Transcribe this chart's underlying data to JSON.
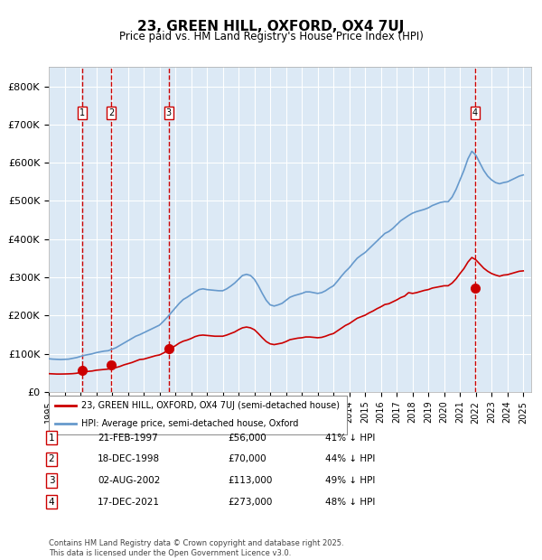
{
  "title": "23, GREEN HILL, OXFORD, OX4 7UJ",
  "subtitle": "Price paid vs. HM Land Registry's House Price Index (HPI)",
  "ylabel_ticks": [
    "£0",
    "£100K",
    "£200K",
    "£300K",
    "£400K",
    "£500K",
    "£600K",
    "£700K",
    "£800K"
  ],
  "ytick_values": [
    0,
    100000,
    200000,
    300000,
    400000,
    500000,
    600000,
    700000,
    800000
  ],
  "ylim": [
    0,
    850000
  ],
  "xlim_start": 1995.0,
  "xlim_end": 2025.5,
  "background_color": "#dce9f5",
  "plot_bg_color": "#dce9f5",
  "grid_color": "#ffffff",
  "sale_dates_decimal": [
    1997.13,
    1998.96,
    2002.58,
    2021.96
  ],
  "sale_prices": [
    56000,
    70000,
    113000,
    273000
  ],
  "sale_labels": [
    "1",
    "2",
    "3",
    "4"
  ],
  "sale_date_strings": [
    "21-FEB-1997",
    "18-DEC-1998",
    "02-AUG-2002",
    "17-DEC-2021"
  ],
  "sale_price_strings": [
    "£56,000",
    "£70,000",
    "£113,000",
    "£273,000"
  ],
  "sale_hpi_strings": [
    "41% ↓ HPI",
    "44% ↓ HPI",
    "49% ↓ HPI",
    "48% ↓ HPI"
  ],
  "red_line_color": "#cc0000",
  "blue_line_color": "#6699cc",
  "marker_color": "#cc0000",
  "vline_color": "#cc0000",
  "legend1_label": "23, GREEN HILL, OXFORD, OX4 7UJ (semi-detached house)",
  "legend2_label": "HPI: Average price, semi-detached house, Oxford",
  "footer_text": "Contains HM Land Registry data © Crown copyright and database right 2025.\nThis data is licensed under the Open Government Licence v3.0.",
  "hpi_years": [
    1995.0,
    1995.25,
    1995.5,
    1995.75,
    1996.0,
    1996.25,
    1996.5,
    1996.75,
    1997.0,
    1997.25,
    1997.5,
    1997.75,
    1998.0,
    1998.25,
    1998.5,
    1998.75,
    1999.0,
    1999.25,
    1999.5,
    1999.75,
    2000.0,
    2000.25,
    2000.5,
    2000.75,
    2001.0,
    2001.25,
    2001.5,
    2001.75,
    2002.0,
    2002.25,
    2002.5,
    2002.75,
    2003.0,
    2003.25,
    2003.5,
    2003.75,
    2004.0,
    2004.25,
    2004.5,
    2004.75,
    2005.0,
    2005.25,
    2005.5,
    2005.75,
    2006.0,
    2006.25,
    2006.5,
    2006.75,
    2007.0,
    2007.25,
    2007.5,
    2007.75,
    2008.0,
    2008.25,
    2008.5,
    2008.75,
    2009.0,
    2009.25,
    2009.5,
    2009.75,
    2010.0,
    2010.25,
    2010.5,
    2010.75,
    2011.0,
    2011.25,
    2011.5,
    2011.75,
    2012.0,
    2012.25,
    2012.5,
    2012.75,
    2013.0,
    2013.25,
    2013.5,
    2013.75,
    2014.0,
    2014.25,
    2014.5,
    2014.75,
    2015.0,
    2015.25,
    2015.5,
    2015.75,
    2016.0,
    2016.25,
    2016.5,
    2016.75,
    2017.0,
    2017.25,
    2017.5,
    2017.75,
    2018.0,
    2018.25,
    2018.5,
    2018.75,
    2019.0,
    2019.25,
    2019.5,
    2019.75,
    2020.0,
    2020.25,
    2020.5,
    2020.75,
    2021.0,
    2021.25,
    2021.5,
    2021.75,
    2022.0,
    2022.25,
    2022.5,
    2022.75,
    2023.0,
    2023.25,
    2023.5,
    2023.75,
    2024.0,
    2024.25,
    2024.5,
    2024.75,
    2025.0
  ],
  "hpi_values": [
    87000,
    86000,
    85500,
    85000,
    85500,
    86000,
    88000,
    90000,
    93000,
    96000,
    98000,
    100000,
    103000,
    105000,
    107000,
    108000,
    112000,
    116000,
    122000,
    128000,
    134000,
    140000,
    146000,
    150000,
    155000,
    160000,
    165000,
    170000,
    175000,
    185000,
    196000,
    208000,
    220000,
    232000,
    242000,
    248000,
    255000,
    262000,
    268000,
    270000,
    268000,
    267000,
    266000,
    265000,
    265000,
    270000,
    277000,
    285000,
    295000,
    305000,
    308000,
    305000,
    295000,
    278000,
    258000,
    240000,
    228000,
    225000,
    228000,
    232000,
    240000,
    248000,
    252000,
    255000,
    258000,
    262000,
    262000,
    260000,
    258000,
    260000,
    265000,
    272000,
    278000,
    290000,
    303000,
    315000,
    325000,
    338000,
    350000,
    358000,
    365000,
    375000,
    385000,
    395000,
    405000,
    415000,
    420000,
    428000,
    438000,
    448000,
    455000,
    462000,
    468000,
    472000,
    475000,
    478000,
    482000,
    488000,
    492000,
    496000,
    498000,
    498000,
    510000,
    530000,
    555000,
    580000,
    610000,
    630000,
    620000,
    600000,
    580000,
    565000,
    555000,
    548000,
    545000,
    548000,
    550000,
    555000,
    560000,
    565000,
    568000
  ],
  "property_hpi_years": [
    1995.0,
    1995.25,
    1995.5,
    1995.75,
    1996.0,
    1996.25,
    1996.5,
    1996.75,
    1997.0,
    1997.25,
    1997.5,
    1997.75,
    1998.0,
    1998.25,
    1998.5,
    1998.75,
    1999.0,
    1999.25,
    1999.5,
    1999.75,
    2000.0,
    2000.25,
    2000.5,
    2000.75,
    2001.0,
    2001.25,
    2001.5,
    2001.75,
    2002.0,
    2002.25,
    2002.5,
    2002.75,
    2003.0,
    2003.25,
    2003.5,
    2003.75,
    2004.0,
    2004.25,
    2004.5,
    2004.75,
    2005.0,
    2005.25,
    2005.5,
    2005.75,
    2006.0,
    2006.25,
    2006.5,
    2006.75,
    2007.0,
    2007.25,
    2007.5,
    2007.75,
    2008.0,
    2008.25,
    2008.5,
    2008.75,
    2009.0,
    2009.25,
    2009.5,
    2009.75,
    2010.0,
    2010.25,
    2010.5,
    2010.75,
    2011.0,
    2011.25,
    2011.5,
    2011.75,
    2012.0,
    2012.25,
    2012.5,
    2012.75,
    2013.0,
    2013.25,
    2013.5,
    2013.75,
    2014.0,
    2014.25,
    2014.5,
    2014.75,
    2015.0,
    2015.25,
    2015.5,
    2015.75,
    2016.0,
    2016.25,
    2016.5,
    2016.75,
    2017.0,
    2017.25,
    2017.5,
    2017.75,
    2018.0,
    2018.25,
    2018.5,
    2018.75,
    2019.0,
    2019.25,
    2019.5,
    2019.75,
    2020.0,
    2020.25,
    2020.5,
    2020.75,
    2021.0,
    2021.25,
    2021.5,
    2021.75,
    2022.0,
    2022.25,
    2022.5,
    2022.75,
    2023.0,
    2023.25,
    2023.5,
    2023.75,
    2024.0,
    2024.25,
    2024.5,
    2024.75,
    2025.0
  ],
  "property_values": [
    48000,
    47500,
    47000,
    47000,
    47200,
    47500,
    48000,
    49000,
    51000,
    53000,
    54000,
    55000,
    57000,
    58000,
    59000,
    60000,
    62000,
    64000,
    67000,
    71000,
    74000,
    77000,
    81000,
    85000,
    86000,
    89000,
    92000,
    95000,
    97000,
    102000,
    108000,
    115000,
    121000,
    128000,
    133000,
    136000,
    140000,
    145000,
    148000,
    149000,
    148000,
    147000,
    146000,
    146000,
    146000,
    149000,
    153000,
    157000,
    163000,
    168000,
    170000,
    168000,
    163000,
    153000,
    142000,
    132000,
    126000,
    124000,
    126000,
    128000,
    132000,
    137000,
    139000,
    141000,
    142000,
    144000,
    144000,
    143000,
    142000,
    143000,
    146000,
    150000,
    153000,
    160000,
    167000,
    174000,
    179000,
    186000,
    193000,
    197000,
    201000,
    207000,
    212000,
    218000,
    223000,
    229000,
    231000,
    236000,
    241000,
    247000,
    251000,
    260000,
    258000,
    260000,
    263000,
    266000,
    268000,
    272000,
    274000,
    276000,
    278000,
    278000,
    285000,
    296000,
    310000,
    323000,
    340000,
    352000,
    346000,
    335000,
    324000,
    316000,
    310000,
    306000,
    303000,
    306000,
    307000,
    310000,
    313000,
    316000,
    317000
  ]
}
